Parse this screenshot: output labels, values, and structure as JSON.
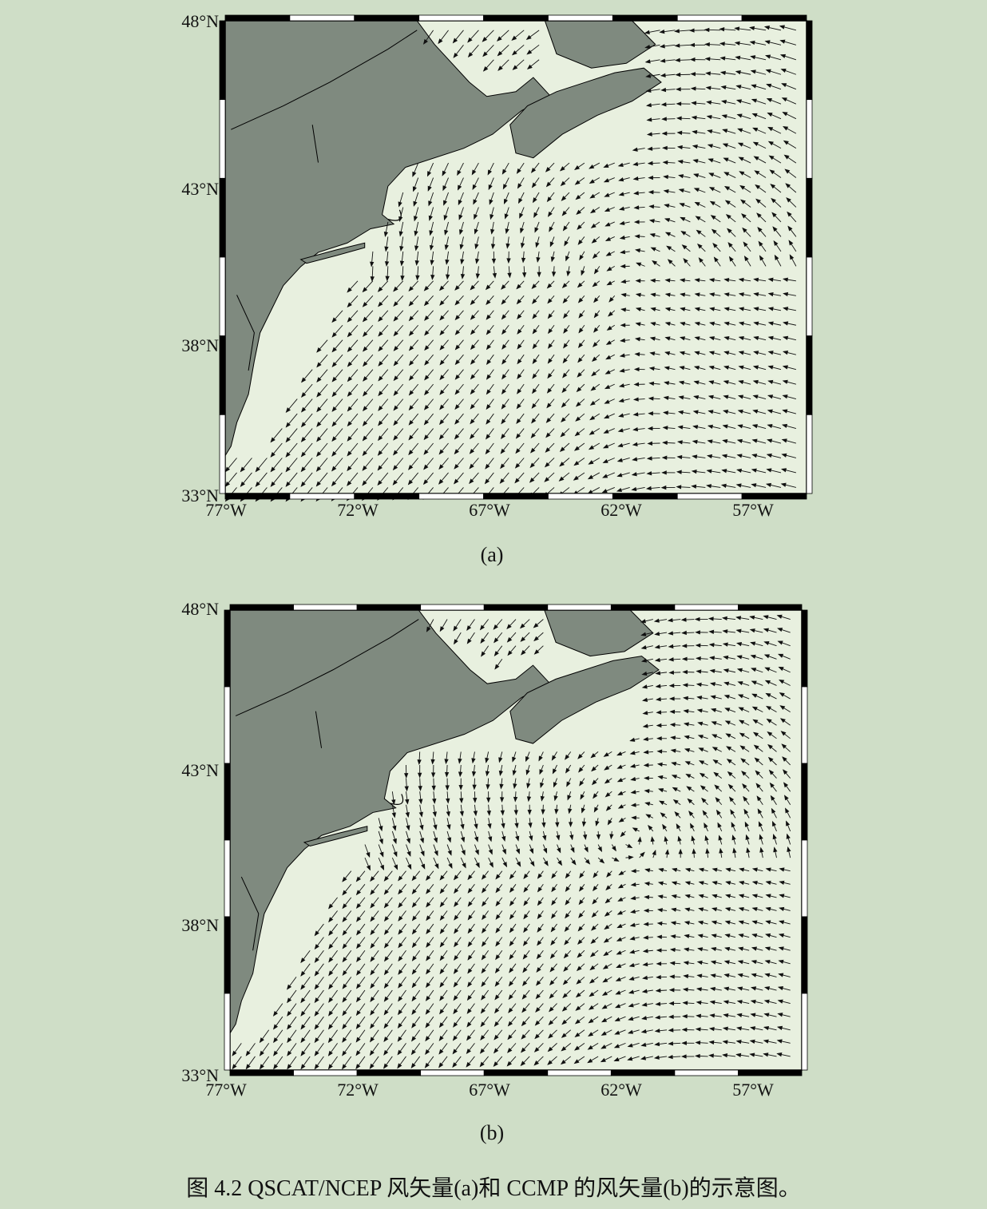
{
  "figure": {
    "caption": "图 4.2    QSCAT/NCEP 风矢量(a)和 CCMP 的风矢量(b)的示意图。",
    "colors": {
      "background": "#cfdec7",
      "land": "#7f8a7f",
      "ocean": "#e8f0df",
      "frame": "#000000",
      "arrow": "#111111"
    }
  },
  "panels": [
    {
      "id": "a",
      "label": "(a)",
      "product": "QSCAT/NCEP",
      "lat_labels": [
        "48°N",
        "43°N",
        "38°N",
        "33°N"
      ],
      "lon_labels": [
        "77°W",
        "72°W",
        "67°W",
        "62°W",
        "57°W"
      ]
    },
    {
      "id": "b",
      "label": "(b)",
      "product": "CCMP",
      "lat_labels": [
        "48°N",
        "43°N",
        "38°N",
        "33°N"
      ],
      "lon_labels": [
        "77°W",
        "72°W",
        "67°W",
        "62°W",
        "57°W"
      ]
    }
  ],
  "chart_data": [
    {
      "type": "vector_field_map",
      "panel": "a",
      "lat_range": [
        33,
        48
      ],
      "lon_range": [
        -77,
        -55
      ],
      "lat_ticks": [
        33,
        38,
        43,
        48
      ],
      "lon_ticks": [
        -77,
        -72,
        -67,
        -62,
        -57
      ],
      "field": "wind vectors, cyclonic circulation centred near 39°N 62°W with strong NE flow along the US coast"
    },
    {
      "type": "vector_field_map",
      "panel": "b",
      "lat_range": [
        33,
        48
      ],
      "lon_range": [
        -77,
        -55
      ],
      "lat_ticks": [
        33,
        38,
        43,
        48
      ],
      "lon_ticks": [
        -77,
        -72,
        -67,
        -62,
        -57
      ],
      "field": "wind vectors, cyclonic circulation centred near 41°N 61°W, smoother field"
    }
  ]
}
